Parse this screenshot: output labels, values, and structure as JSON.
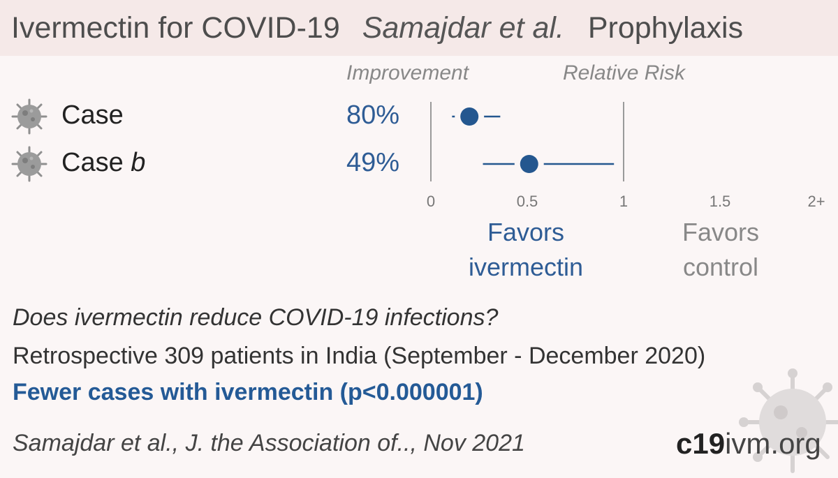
{
  "title": {
    "main": "Ivermectin for COVID-19",
    "authors": "Samajdar et al.",
    "category": "Prophylaxis"
  },
  "columns": {
    "improvement": "Improvement",
    "relative_risk": "Relative Risk"
  },
  "rows": [
    {
      "label": "Case",
      "suffix": "",
      "improvement": "80%"
    },
    {
      "label": "Case",
      "suffix": "b",
      "improvement": "49%"
    }
  ],
  "chart_data": {
    "type": "scatter",
    "subtype": "forest-plot",
    "xlabel": "Relative Risk",
    "xlim": [
      0,
      2
    ],
    "x_ticks": [
      "0",
      "0.5",
      "1",
      "1.5",
      "2+"
    ],
    "x_tick_values": [
      0,
      0.5,
      1,
      1.5,
      2
    ],
    "reference_line": 1,
    "series": [
      {
        "category": "Case",
        "rr": 0.2,
        "ci_low": 0.11,
        "ci_high": 0.36
      },
      {
        "category": "Case b",
        "rr": 0.51,
        "ci_low": 0.27,
        "ci_high": 0.95
      }
    ],
    "favors_left": [
      "Favors",
      "ivermectin"
    ],
    "favors_right": [
      "Favors",
      "control"
    ],
    "colors": {
      "point": "#24578f",
      "axis": "#9a9a9a",
      "ivermectin": "#2e5c95",
      "control": "#888888"
    }
  },
  "question": "Does ivermectin reduce COVID-19 infections?",
  "design": "Retrospective 309 patients in India (September - December 2020)",
  "result": "Fewer cases with ivermectin (p<0.000001)",
  "citation": "Samajdar et al., J. the Association of.., Nov 2021",
  "brand": {
    "part1": "c19",
    "part2": "ivm.org"
  },
  "icons": {
    "row_icon": "virus-icon",
    "watermark": "virus-watermark-icon"
  }
}
